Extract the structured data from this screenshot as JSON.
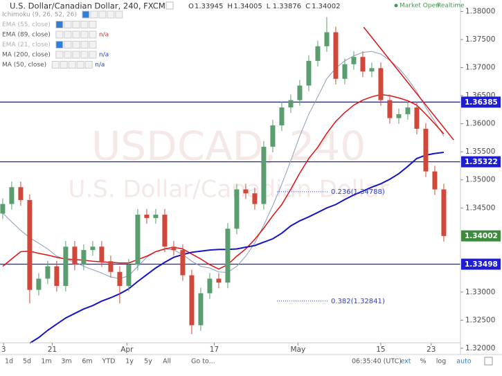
{
  "chart_data": {
    "type": "candlestick",
    "title": "U.S. Dollar/Canadian Dollar, 240, FXCM",
    "ohlc": [
      {
        "label": "O",
        "value": 1.33945
      },
      {
        "label": "H",
        "value": 1.34005
      },
      {
        "label": "L",
        "value": 1.33876
      },
      {
        "label": "C",
        "value": 1.34002
      }
    ],
    "status": [
      "Market Open",
      "Realtime"
    ],
    "watermark": [
      "USDCAD, 240",
      "U.S. Dollar/Canadian Dollar"
    ],
    "indicators": [
      {
        "name": "Ichimoku (9, 26, 52, 26)"
      },
      {
        "name": "EMA (55, close)"
      },
      {
        "name": "EMA (89, close)",
        "status": "n/a",
        "status_color": "#d32f2f"
      },
      {
        "name": "EMA (21, close)"
      },
      {
        "name": "MA (200, close)",
        "status": "n/a",
        "status_color": "#1e3fd8"
      },
      {
        "name": "MA (50, close)",
        "status": "n/a",
        "status_color": "#1e3fd8"
      }
    ],
    "up_color": "#5a9e6f",
    "down_color": "#d0483a",
    "open": [
      1.344,
      1.3457,
      1.3487,
      1.3464,
      1.3304,
      1.3324,
      1.3346,
      1.3311,
      1.3381,
      1.3349,
      1.3375,
      1.3381,
      1.3355,
      1.3336,
      1.3311,
      1.3349,
      1.3438,
      1.3432,
      1.3438,
      1.3381,
      1.3375,
      1.333,
      1.3241,
      1.3298,
      1.3324,
      1.3317,
      1.3413,
      1.3483,
      1.3476,
      1.3457,
      1.3559,
      1.3597,
      1.3629,
      1.3642,
      1.3668,
      1.3712,
      1.3738,
      1.3763,
      1.368,
      1.3706,
      1.3719,
      1.3693,
      1.3699,
      1.3642,
      1.361,
      1.3617,
      1.3629,
      1.3591,
      1.3515,
      1.3483
    ],
    "high": [
      1.3467,
      1.3497,
      1.3497,
      1.3474,
      1.3334,
      1.3356,
      1.3356,
      1.3391,
      1.3391,
      1.3385,
      1.3391,
      1.3391,
      1.3365,
      1.3346,
      1.3359,
      1.3448,
      1.3448,
      1.3448,
      1.3448,
      1.3391,
      1.3385,
      1.334,
      1.3308,
      1.3334,
      1.3334,
      1.3423,
      1.3493,
      1.3493,
      1.3486,
      1.3569,
      1.3607,
      1.3639,
      1.3652,
      1.3678,
      1.3722,
      1.3748,
      1.379,
      1.3773,
      1.3716,
      1.3729,
      1.3729,
      1.3709,
      1.3709,
      1.3652,
      1.3627,
      1.3639,
      1.3639,
      1.3601,
      1.3525,
      1.3493
    ],
    "low": [
      1.343,
      1.3447,
      1.3454,
      1.328,
      1.3294,
      1.3314,
      1.3301,
      1.3301,
      1.3339,
      1.3339,
      1.3365,
      1.3345,
      1.3326,
      1.328,
      1.3301,
      1.3339,
      1.3422,
      1.3422,
      1.3371,
      1.3365,
      1.332,
      1.3225,
      1.3231,
      1.3288,
      1.3307,
      1.3307,
      1.3403,
      1.3466,
      1.3447,
      1.3447,
      1.3549,
      1.3587,
      1.3619,
      1.3632,
      1.3658,
      1.3702,
      1.3728,
      1.367,
      1.367,
      1.3696,
      1.3683,
      1.3683,
      1.3632,
      1.36,
      1.36,
      1.3607,
      1.3581,
      1.3505,
      1.3473,
      1.339
    ],
    "close": [
      1.3457,
      1.3487,
      1.3464,
      1.3304,
      1.3324,
      1.3346,
      1.3311,
      1.3381,
      1.3349,
      1.3375,
      1.3381,
      1.3355,
      1.3336,
      1.3311,
      1.3349,
      1.3438,
      1.3432,
      1.3438,
      1.3381,
      1.3375,
      1.333,
      1.3241,
      1.3298,
      1.3324,
      1.3317,
      1.3413,
      1.3483,
      1.3476,
      1.3457,
      1.3559,
      1.3597,
      1.3629,
      1.3642,
      1.3668,
      1.3712,
      1.3738,
      1.3763,
      1.368,
      1.3706,
      1.3719,
      1.3693,
      1.3699,
      1.3642,
      1.361,
      1.3617,
      1.3629,
      1.3591,
      1.3515,
      1.3483,
      1.34
    ],
    "lines": [
      {
        "color": "#8a9bb8",
        "width": 1,
        "values": [
          1.3441,
          1.3425,
          1.341,
          1.3397,
          1.3387,
          1.3377,
          1.3364,
          1.3358,
          1.3354,
          1.3346,
          1.334,
          1.3334,
          1.3327,
          1.3324,
          1.3329,
          1.3346,
          1.3362,
          1.3372,
          1.3377,
          1.3375,
          1.3367,
          1.3355,
          1.3346,
          1.3343,
          1.3336,
          1.3335,
          1.3346,
          1.3364,
          1.3387,
          1.3419,
          1.3454,
          1.3492,
          1.3534,
          1.3578,
          1.3617,
          1.3648,
          1.368,
          1.3699,
          1.3712,
          1.3721,
          1.3727,
          1.3729,
          1.3724,
          1.3713,
          1.3699,
          1.368,
          1.3657,
          1.3629,
          1.3604,
          1.3578
        ]
      },
      {
        "color": "#e01010",
        "width": 1.5,
        "values": [
          1.3346,
          1.3359,
          1.3372,
          1.3373,
          1.3369,
          1.3366,
          1.3362,
          1.3359,
          1.3358,
          1.3357,
          1.3355,
          1.3354,
          1.3353,
          1.3352,
          1.3352,
          1.3358,
          1.3364,
          1.3372,
          1.3377,
          1.338,
          1.3377,
          1.3368,
          1.3359,
          1.3349,
          1.3341,
          1.3349,
          1.3364,
          1.3377,
          1.3394,
          1.3414,
          1.3436,
          1.3456,
          1.3483,
          1.3512,
          1.3538,
          1.3558,
          1.3583,
          1.3604,
          1.362,
          1.3633,
          1.3642,
          1.3648,
          1.3652,
          1.365,
          1.3646,
          1.3641,
          1.3633,
          1.3617,
          1.36,
          1.3582
        ]
      },
      {
        "color": "#1414c8",
        "width": 2,
        "values": [
          null,
          null,
          null,
          1.3209,
          1.3219,
          1.3232,
          1.3243,
          1.3254,
          1.3262,
          1.327,
          1.3276,
          1.3284,
          1.329,
          1.3297,
          1.3306,
          1.3319,
          1.3331,
          1.3343,
          1.3353,
          1.3362,
          1.3367,
          1.3371,
          1.3373,
          1.3375,
          1.3376,
          1.3376,
          1.3377,
          1.338,
          1.3383,
          1.3389,
          1.3395,
          1.3405,
          1.3418,
          1.3427,
          1.3434,
          1.3442,
          1.345,
          1.3456,
          1.3465,
          1.3473,
          1.348,
          1.3487,
          1.3493,
          1.3501,
          1.3511,
          1.3524,
          1.3538,
          1.3544,
          1.3547,
          1.3549
        ]
      }
    ],
    "trendline": {
      "color": "#e01010",
      "x": [
        40.1,
        50.1
      ],
      "values": [
        1.3772,
        1.3571
      ]
    },
    "levels": [
      {
        "value": 1.36385,
        "color": "#1e1ed0"
      },
      {
        "value": 1.35322,
        "color": "#1e1ed0"
      },
      {
        "value": 1.33498,
        "color": "#1e1ed0"
      }
    ],
    "last_price": {
      "value": 1.34002,
      "color": "#3d8b3d"
    },
    "fib": [
      {
        "label": "0.236(1.34788)",
        "value": 1.34788
      },
      {
        "label": "0.382(1.32841)",
        "value": 1.32841
      }
    ],
    "fib_color": "#2a3fd0",
    "xlim": [
      -0.3,
      50.85
    ],
    "xticks": [
      {
        "value": 0.1,
        "label": "3"
      },
      {
        "value": 5.5,
        "label": "21"
      },
      {
        "value": 13.8,
        "label": "Apr"
      },
      {
        "value": 23.5,
        "label": "17"
      },
      {
        "value": 32.8,
        "label": "May"
      },
      {
        "value": 42,
        "label": "15"
      },
      {
        "value": 47.6,
        "label": "23"
      }
    ],
    "ylim": [
      1.32098,
      1.38204
    ],
    "yticks": [
      {
        "value": 1.38,
        "label": "1.38000"
      },
      {
        "value": 1.375,
        "label": "1.37500"
      },
      {
        "value": 1.37,
        "label": "1.37000"
      },
      {
        "value": 1.365,
        "label": "1.36500"
      },
      {
        "value": 1.36,
        "label": "1.36000"
      },
      {
        "value": 1.355,
        "label": "1.35500"
      },
      {
        "value": 1.35,
        "label": "1.35000"
      },
      {
        "value": 1.345,
        "label": "1.34500"
      },
      {
        "value": 1.33,
        "label": "1.33000"
      },
      {
        "value": 1.325,
        "label": "1.32500"
      },
      {
        "value": 1.32,
        "label": "1.32000"
      }
    ],
    "toolbar": {
      "ranges": [
        "1d",
        "5d",
        "1m",
        "3m",
        "6m",
        "YTD",
        "1y",
        "5y",
        "All",
        "Go to..."
      ],
      "time": "06:35:40 (UTC)",
      "options": [
        "ext",
        "%",
        "log",
        "auto"
      ]
    }
  }
}
